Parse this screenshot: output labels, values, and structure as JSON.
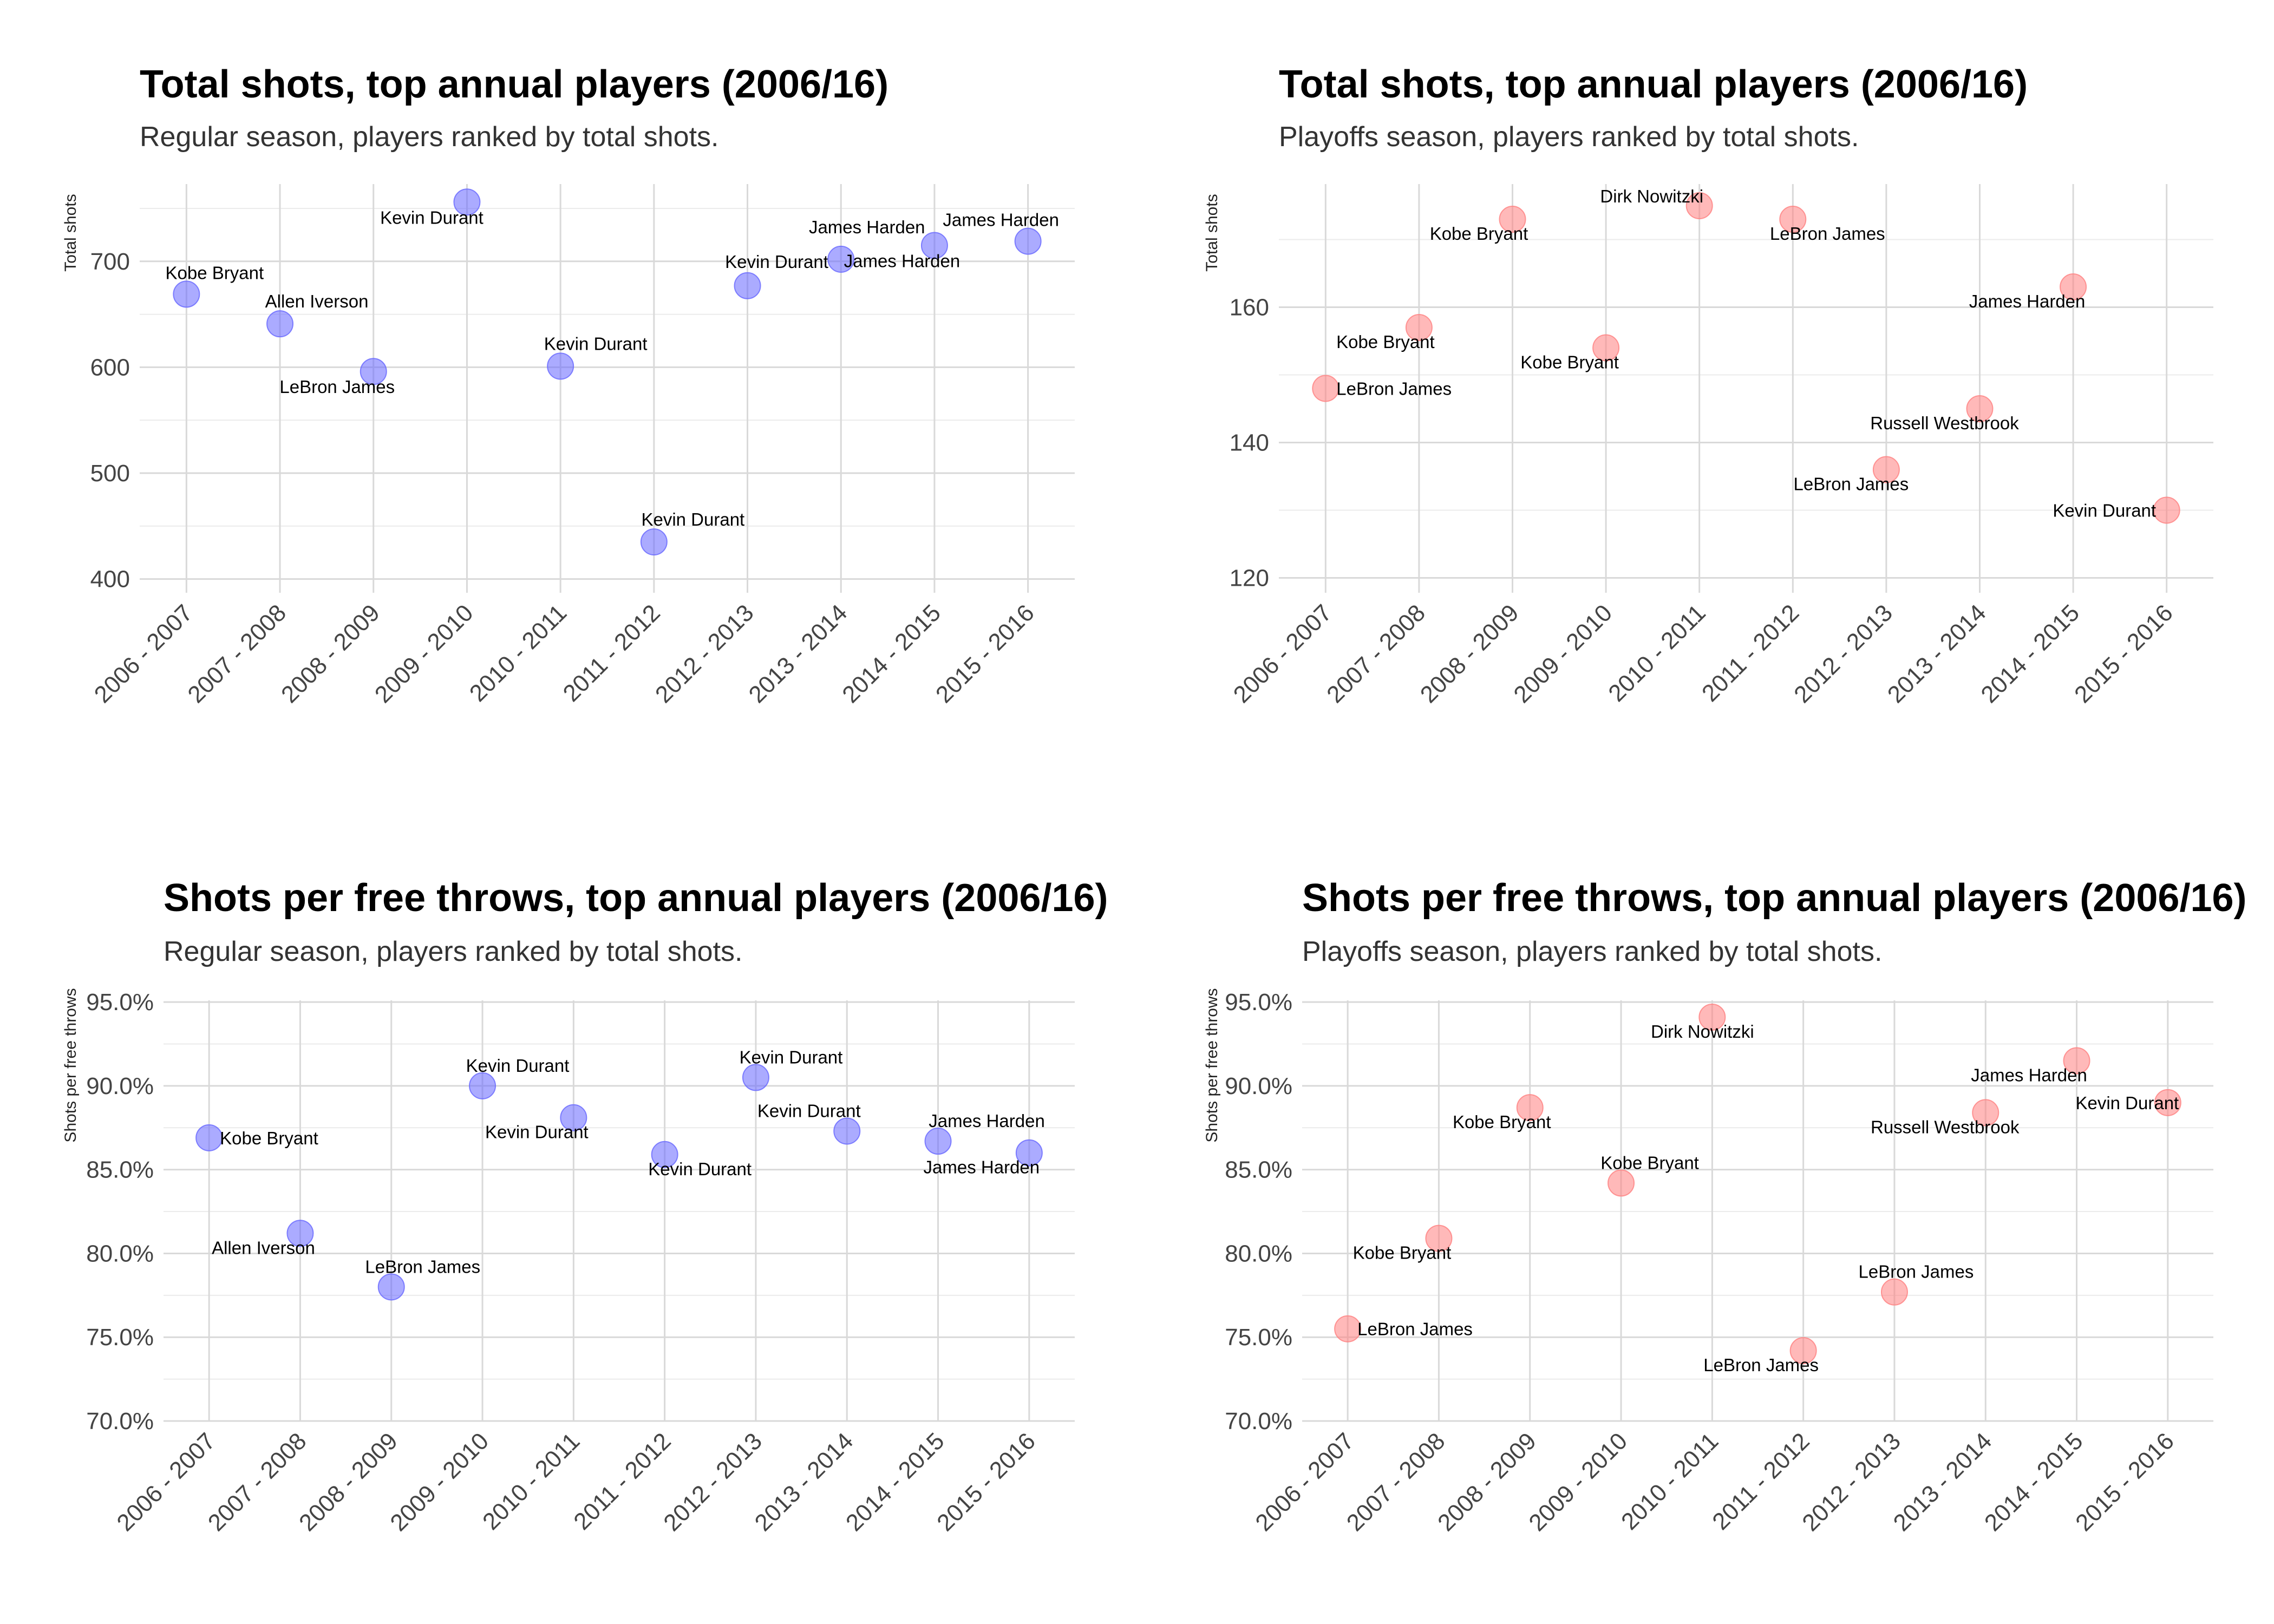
{
  "colors": {
    "regular": "#6666ff",
    "playoffs": "#ff7f7f"
  },
  "chart_data": [
    {
      "type": "scatter",
      "title": "Total shots, top annual players (2006/16)",
      "subtitle": "Regular season, players ranked by total shots.",
      "xlabel": "",
      "ylabel": "Total shots",
      "categories": [
        "2006 - 2007",
        "2007 - 2008",
        "2008 - 2009",
        "2009 - 2010",
        "2010 - 2011",
        "2011 - 2012",
        "2012 - 2013",
        "2013 - 2014",
        "2014 - 2015",
        "2015 - 2016"
      ],
      "yticks": [
        400,
        500,
        600,
        700
      ],
      "ytick_labels": [
        "400",
        "500",
        "600",
        "700"
      ],
      "ylim": [
        387,
        773
      ],
      "grid": true,
      "color_key": "regular",
      "values": [
        669,
        641,
        596,
        756,
        601,
        435,
        677,
        702,
        715,
        719
      ],
      "players": [
        "Kobe Bryant",
        "Allen Iverson",
        "LeBron James",
        "Kevin Durant",
        "Kevin Durant",
        "Kevin Durant",
        "Kevin Durant",
        "James Harden",
        "James Harden",
        "James Harden"
      ]
    },
    {
      "type": "scatter",
      "title": "Total shots, top annual players (2006/16)",
      "subtitle": "Playoffs season, players ranked by total shots.",
      "xlabel": "",
      "ylabel": "Total shots",
      "categories": [
        "2006 - 2007",
        "2007 - 2008",
        "2008 - 2009",
        "2009 - 2010",
        "2010 - 2011",
        "2011 - 2012",
        "2012 - 2013",
        "2013 - 2014",
        "2014 - 2015",
        "2015 - 2016"
      ],
      "yticks": [
        120,
        140,
        160
      ],
      "ytick_labels": [
        "120",
        "140",
        "160"
      ],
      "ylim": [
        117.8,
        178.2
      ],
      "grid": true,
      "color_key": "playoffs",
      "values": [
        148,
        157,
        173,
        154,
        175,
        173,
        136,
        145,
        163,
        130
      ],
      "players": [
        "LeBron James",
        "Kobe Bryant",
        "Kobe Bryant",
        "Kobe Bryant",
        "Dirk Nowitzki",
        "LeBron James",
        "LeBron James",
        "Russell Westbrook",
        "James Harden",
        "Kevin Durant"
      ]
    },
    {
      "type": "scatter",
      "title": "Shots per free throws, top annual players (2006/16)",
      "subtitle": "Regular season, players ranked by total shots.",
      "xlabel": "",
      "ylabel": "Shots per free throws",
      "categories": [
        "2006 - 2007",
        "2007 - 2008",
        "2008 - 2009",
        "2009 - 2010",
        "2010 - 2011",
        "2011 - 2012",
        "2012 - 2013",
        "2013 - 2014",
        "2014 - 2015",
        "2015 - 2016"
      ],
      "yticks": [
        0.7,
        0.75,
        0.8,
        0.85,
        0.9,
        0.95
      ],
      "ytick_labels": [
        "70.0%",
        "75.0%",
        "80.0%",
        "85.0%",
        "90.0%",
        "95.0%"
      ],
      "ylim": [
        0.7,
        0.951
      ],
      "grid": true,
      "color_key": "regular",
      "values": [
        0.869,
        0.812,
        0.78,
        0.9,
        0.881,
        0.859,
        0.905,
        0.873,
        0.867,
        0.86
      ],
      "players": [
        "Kobe Bryant",
        "Allen Iverson",
        "LeBron James",
        "Kevin Durant",
        "Kevin Durant",
        "Kevin Durant",
        "Kevin Durant",
        "Kevin Durant",
        "James Harden",
        "James Harden"
      ]
    },
    {
      "type": "scatter",
      "title": "Shots per free throws, top annual players (2006/16)",
      "subtitle": "Playoffs season, players ranked by total shots.",
      "xlabel": "",
      "ylabel": "Shots per free throws",
      "categories": [
        "2006 - 2007",
        "2007 - 2008",
        "2008 - 2009",
        "2009 - 2010",
        "2010 - 2011",
        "2011 - 2012",
        "2012 - 2013",
        "2013 - 2014",
        "2014 - 2015",
        "2015 - 2016"
      ],
      "yticks": [
        0.7,
        0.75,
        0.8,
        0.85,
        0.9,
        0.95
      ],
      "ytick_labels": [
        "70.0%",
        "75.0%",
        "80.0%",
        "85.0%",
        "90.0%",
        "95.0%"
      ],
      "ylim": [
        0.7,
        0.951
      ],
      "grid": true,
      "color_key": "playoffs",
      "values": [
        0.755,
        0.809,
        0.887,
        0.842,
        0.941,
        0.742,
        0.777,
        0.884,
        0.915,
        0.89
      ],
      "players": [
        "LeBron James",
        "Kobe Bryant",
        "Kobe Bryant",
        "Kobe Bryant",
        "Dirk Nowitzki",
        "LeBron James",
        "LeBron James",
        "Russell Westbrook",
        "James Harden",
        "Kevin Durant"
      ]
    }
  ]
}
